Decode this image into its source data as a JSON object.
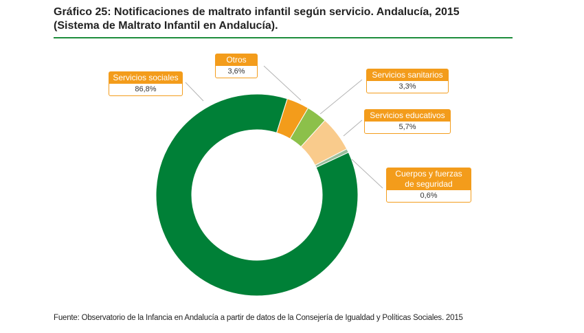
{
  "title": {
    "line1": "Gráfico 25: Notificaciones de maltrato infantil según servicio. Andalucía, 2015",
    "line2": "(Sistema de Maltrato Infantil en Andalucía)."
  },
  "source": "Fuente: Observatorio de la Infancia en Andalucía a partir de datos de la Consejería de Igualdad y Políticas Sociales. 2015",
  "colors": {
    "accent": "#f39c1b",
    "rule": "#1c8c3a"
  },
  "chart_data": {
    "type": "pie",
    "variant": "donut",
    "title": "",
    "series": [
      {
        "name": "Otros",
        "value": 3.6,
        "label": "3,6%",
        "color": "#f39c1b"
      },
      {
        "name": "Servicios sanitarios",
        "value": 3.3,
        "label": "3,3%",
        "color": "#8cc04a"
      },
      {
        "name": "Servicios educativos",
        "value": 5.7,
        "label": "5,7%",
        "color": "#f9cb8c"
      },
      {
        "name": "Cuerpos y fuerzas de seguridad",
        "value": 0.6,
        "label": "0,6%",
        "color": "#9bbf9c"
      },
      {
        "name": "Servicios sociales",
        "value": 86.8,
        "label": "86,8%",
        "color": "#008037"
      }
    ]
  }
}
